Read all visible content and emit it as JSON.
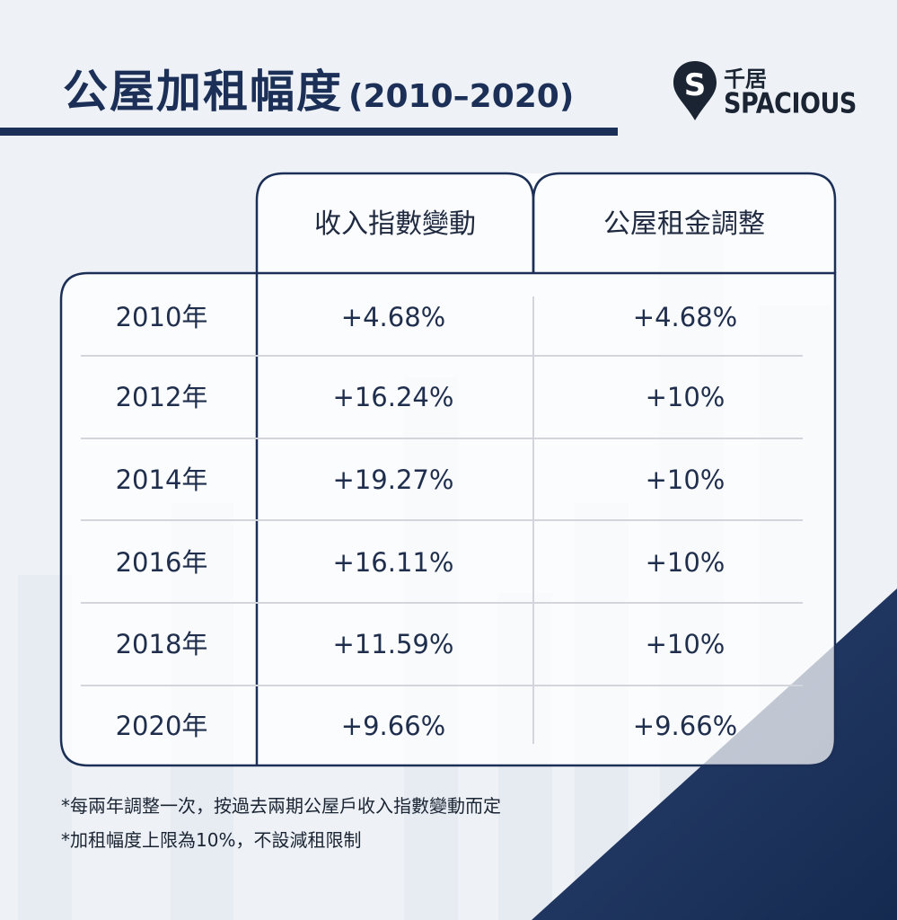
{
  "title": {
    "main": "公屋加租幅度",
    "range": "(2010–2020)"
  },
  "logo": {
    "mark_letter": "S",
    "zh": "千居",
    "en": "SPACIOUS"
  },
  "table": {
    "headers": [
      "收入指數變動",
      "公屋租金調整"
    ],
    "rows": [
      {
        "year": "2010年",
        "income_change": "+4.68%",
        "rent_adjustment": "+4.68%"
      },
      {
        "year": "2012年",
        "income_change": "+16.24%",
        "rent_adjustment": "+10%"
      },
      {
        "year": "2014年",
        "income_change": "+19.27%",
        "rent_adjustment": "+10%"
      },
      {
        "year": "2016年",
        "income_change": "+16.11%",
        "rent_adjustment": "+10%"
      },
      {
        "year": "2018年",
        "income_change": "+11.59%",
        "rent_adjustment": "+10%"
      },
      {
        "year": "2020年",
        "income_change": "+9.66%",
        "rent_adjustment": "+9.66%"
      }
    ]
  },
  "notes": [
    "*每兩年調整一次，按過去兩期公屋戶收入指數變動而定",
    "*加租幅度上限為10%，不設減租限制"
  ],
  "colors": {
    "navy": "#1b2f57",
    "background": "#eef2f6",
    "corner_navy": "#1c3259"
  }
}
